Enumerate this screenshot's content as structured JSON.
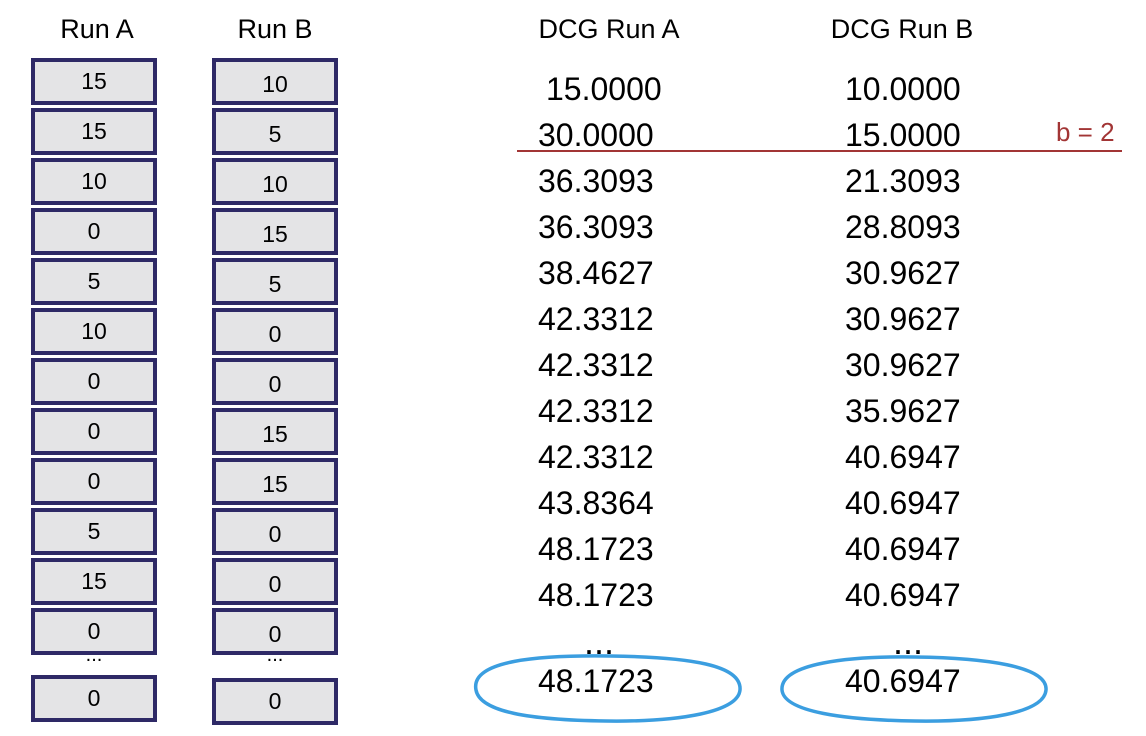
{
  "headers": {
    "run_a": "Run A",
    "run_b": "Run B",
    "dcg_run_a": "DCG Run A",
    "dcg_run_b": "DCG Run B"
  },
  "run_a": [
    "15",
    "15",
    "10",
    "0",
    "5",
    "10",
    "0",
    "0",
    "0",
    "5",
    "15",
    "0"
  ],
  "run_b": [
    "10",
    "5",
    "10",
    "15",
    "5",
    "0",
    "0",
    "15",
    "15",
    "0",
    "0",
    "0"
  ],
  "run_a_last": "0",
  "run_b_last": "0",
  "ellipsis_small": "...",
  "ellipsis_large": "...",
  "dcg_a": [
    "15.0000",
    "30.0000",
    "36.3093",
    "36.3093",
    "38.4627",
    "42.3312",
    "42.3312",
    "42.3312",
    "42.3312",
    "43.8364",
    "48.1723",
    "48.1723"
  ],
  "dcg_b": [
    "10.0000",
    "15.0000",
    "21.3093",
    "28.8093",
    "30.9627",
    "30.9627",
    "30.9627",
    "35.9627",
    "40.6947",
    "40.6947",
    "40.6947",
    "40.6947"
  ],
  "dcg_a_final": "48.1723",
  "dcg_b_final": "40.6947",
  "cutoff_label": "b = 2",
  "colors": {
    "cell_border": "#2e2966",
    "cell_fill": "#e4e4e6",
    "cutoff_line": "#a23535",
    "highlight_ellipse": "#3b9ee0"
  }
}
